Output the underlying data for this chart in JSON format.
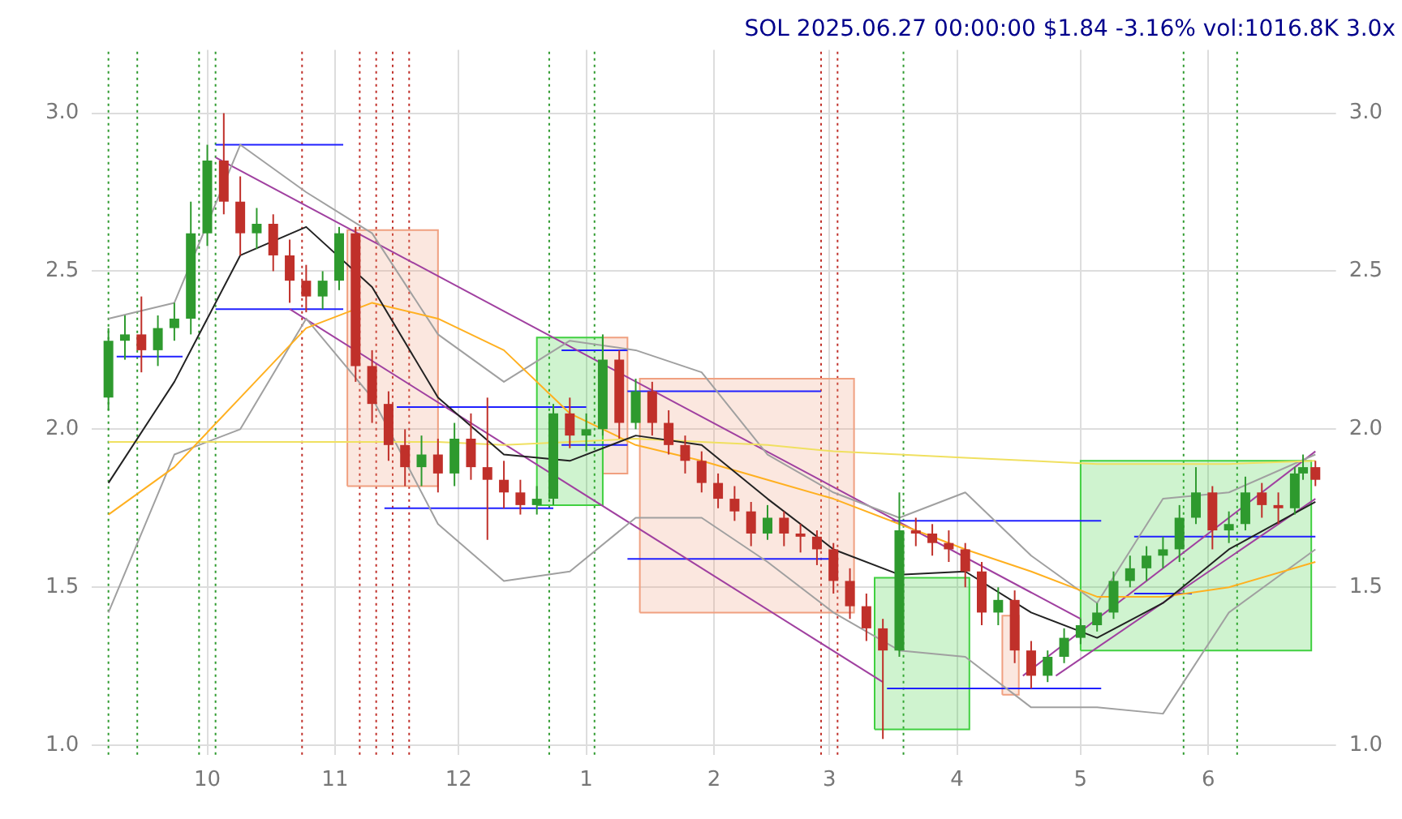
{
  "chart_data": {
    "type": "candlestick",
    "title": "SOL 2025.06.27 00:00:00 $1.84 -3.16% vol:1016.8K 3.0x",
    "x": [
      "2024-09-07",
      "2024-09-11",
      "2024-09-15",
      "2024-09-19",
      "2024-09-23",
      "2024-09-27",
      "2024-10-01",
      "2024-10-05",
      "2024-10-09",
      "2024-10-13",
      "2024-10-17",
      "2024-10-21",
      "2024-10-25",
      "2024-10-29",
      "2024-11-02",
      "2024-11-06",
      "2024-11-10",
      "2024-11-14",
      "2024-11-18",
      "2024-11-22",
      "2024-11-26",
      "2024-11-30",
      "2024-12-04",
      "2024-12-08",
      "2024-12-12",
      "2024-12-16",
      "2024-12-20",
      "2024-12-24",
      "2024-12-28",
      "2025-01-01",
      "2025-01-05",
      "2025-01-09",
      "2025-01-13",
      "2025-01-17",
      "2025-01-21",
      "2025-01-25",
      "2025-01-29",
      "2025-02-02",
      "2025-02-06",
      "2025-02-10",
      "2025-02-14",
      "2025-02-18",
      "2025-02-22",
      "2025-02-26",
      "2025-03-02",
      "2025-03-06",
      "2025-03-10",
      "2025-03-14",
      "2025-03-18",
      "2025-03-22",
      "2025-03-26",
      "2025-03-30",
      "2025-04-03",
      "2025-04-07",
      "2025-04-11",
      "2025-04-15",
      "2025-04-19",
      "2025-04-23",
      "2025-04-27",
      "2025-05-01",
      "2025-05-05",
      "2025-05-09",
      "2025-05-13",
      "2025-05-17",
      "2025-05-21",
      "2025-05-25",
      "2025-05-29",
      "2025-06-02",
      "2025-06-06",
      "2025-06-10",
      "2025-06-14",
      "2025-06-18",
      "2025-06-22",
      "2025-06-24",
      "2025-06-27"
    ],
    "ohlc": [
      [
        2.1,
        2.32,
        2.06,
        2.28
      ],
      [
        2.28,
        2.36,
        2.22,
        2.3
      ],
      [
        2.3,
        2.42,
        2.18,
        2.25
      ],
      [
        2.25,
        2.36,
        2.2,
        2.32
      ],
      [
        2.32,
        2.4,
        2.28,
        2.35
      ],
      [
        2.35,
        2.72,
        2.3,
        2.62
      ],
      [
        2.62,
        2.9,
        2.58,
        2.85
      ],
      [
        2.85,
        3.0,
        2.68,
        2.72
      ],
      [
        2.72,
        2.8,
        2.55,
        2.62
      ],
      [
        2.62,
        2.7,
        2.57,
        2.65
      ],
      [
        2.65,
        2.68,
        2.5,
        2.55
      ],
      [
        2.55,
        2.6,
        2.4,
        2.47
      ],
      [
        2.47,
        2.52,
        2.37,
        2.42
      ],
      [
        2.42,
        2.5,
        2.38,
        2.47
      ],
      [
        2.47,
        2.64,
        2.44,
        2.62
      ],
      [
        2.62,
        2.64,
        2.15,
        2.2
      ],
      [
        2.2,
        2.25,
        2.02,
        2.08
      ],
      [
        2.08,
        2.12,
        1.9,
        1.95
      ],
      [
        1.95,
        2.0,
        1.82,
        1.88
      ],
      [
        1.88,
        1.98,
        1.82,
        1.92
      ],
      [
        1.92,
        1.97,
        1.8,
        1.86
      ],
      [
        1.86,
        2.02,
        1.82,
        1.97
      ],
      [
        1.97,
        2.05,
        1.84,
        1.88
      ],
      [
        1.88,
        2.1,
        1.65,
        1.84
      ],
      [
        1.84,
        1.9,
        1.75,
        1.8
      ],
      [
        1.8,
        1.84,
        1.73,
        1.76
      ],
      [
        1.76,
        1.82,
        1.73,
        1.78
      ],
      [
        1.78,
        2.08,
        1.76,
        2.05
      ],
      [
        2.05,
        2.1,
        1.94,
        1.98
      ],
      [
        1.98,
        2.05,
        1.93,
        2.0
      ],
      [
        2.0,
        2.3,
        1.98,
        2.22
      ],
      [
        2.22,
        2.25,
        1.97,
        2.02
      ],
      [
        2.02,
        2.16,
        2.0,
        2.12
      ],
      [
        2.12,
        2.15,
        1.98,
        2.02
      ],
      [
        2.02,
        2.06,
        1.92,
        1.95
      ],
      [
        1.95,
        1.98,
        1.86,
        1.9
      ],
      [
        1.9,
        1.93,
        1.8,
        1.83
      ],
      [
        1.83,
        1.86,
        1.75,
        1.78
      ],
      [
        1.78,
        1.82,
        1.71,
        1.74
      ],
      [
        1.74,
        1.77,
        1.63,
        1.67
      ],
      [
        1.67,
        1.76,
        1.65,
        1.72
      ],
      [
        1.72,
        1.74,
        1.63,
        1.67
      ],
      [
        1.67,
        1.7,
        1.61,
        1.66
      ],
      [
        1.66,
        1.68,
        1.57,
        1.62
      ],
      [
        1.62,
        1.64,
        1.48,
        1.52
      ],
      [
        1.52,
        1.56,
        1.4,
        1.44
      ],
      [
        1.44,
        1.48,
        1.33,
        1.37
      ],
      [
        1.37,
        1.4,
        1.02,
        1.3
      ],
      [
        1.3,
        1.8,
        1.28,
        1.68
      ],
      [
        1.68,
        1.72,
        1.63,
        1.67
      ],
      [
        1.67,
        1.7,
        1.6,
        1.64
      ],
      [
        1.64,
        1.68,
        1.58,
        1.62
      ],
      [
        1.62,
        1.64,
        1.5,
        1.55
      ],
      [
        1.55,
        1.58,
        1.38,
        1.42
      ],
      [
        1.42,
        1.5,
        1.38,
        1.46
      ],
      [
        1.46,
        1.49,
        1.26,
        1.3
      ],
      [
        1.3,
        1.33,
        1.18,
        1.22
      ],
      [
        1.22,
        1.3,
        1.2,
        1.28
      ],
      [
        1.28,
        1.37,
        1.26,
        1.34
      ],
      [
        1.34,
        1.4,
        1.32,
        1.38
      ],
      [
        1.38,
        1.45,
        1.36,
        1.42
      ],
      [
        1.42,
        1.55,
        1.4,
        1.52
      ],
      [
        1.52,
        1.6,
        1.5,
        1.56
      ],
      [
        1.56,
        1.63,
        1.52,
        1.6
      ],
      [
        1.6,
        1.66,
        1.56,
        1.62
      ],
      [
        1.62,
        1.76,
        1.58,
        1.72
      ],
      [
        1.72,
        1.88,
        1.7,
        1.8
      ],
      [
        1.8,
        1.82,
        1.62,
        1.68
      ],
      [
        1.68,
        1.74,
        1.64,
        1.7
      ],
      [
        1.7,
        1.85,
        1.68,
        1.8
      ],
      [
        1.8,
        1.83,
        1.72,
        1.76
      ],
      [
        1.76,
        1.8,
        1.7,
        1.75
      ],
      [
        1.75,
        1.88,
        1.73,
        1.86
      ],
      [
        1.86,
        1.92,
        1.84,
        1.88
      ],
      [
        1.88,
        1.9,
        1.82,
        1.84
      ]
    ],
    "colors": [
      "#2e9a2e",
      "#2e9a2e",
      "#c0302a",
      "#2e9a2e",
      "#2e9a2e",
      "#2e9a2e",
      "#2e9a2e",
      "#c0302a",
      "#c0302a",
      "#2e9a2e",
      "#c0302a",
      "#c0302a",
      "#c0302a",
      "#2e9a2e",
      "#2e9a2e",
      "#c0302a",
      "#c0302a",
      "#c0302a",
      "#c0302a",
      "#2e9a2e",
      "#c0302a",
      "#2e9a2e",
      "#c0302a",
      "#c0302a",
      "#c0302a",
      "#c0302a",
      "#2e9a2e",
      "#2e9a2e",
      "#c0302a",
      "#2e9a2e",
      "#2e9a2e",
      "#c0302a",
      "#2e9a2e",
      "#c0302a",
      "#c0302a",
      "#c0302a",
      "#c0302a",
      "#c0302a",
      "#c0302a",
      "#c0302a",
      "#2e9a2e",
      "#c0302a",
      "#c0302a",
      "#c0302a",
      "#c0302a",
      "#c0302a",
      "#c0302a",
      "#c0302a",
      "#2e9a2e",
      "#c0302a",
      "#c0302a",
      "#c0302a",
      "#c0302a",
      "#c0302a",
      "#2e9a2e",
      "#c0302a",
      "#c0302a",
      "#2e9a2e",
      "#2e9a2e",
      "#2e9a2e",
      "#2e9a2e",
      "#2e9a2e",
      "#2e9a2e",
      "#2e9a2e",
      "#2e9a2e",
      "#2e9a2e",
      "#2e9a2e",
      "#c0302a",
      "#2e9a2e",
      "#2e9a2e",
      "#c0302a",
      "#c0302a",
      "#2e9a2e",
      "#2e9a2e",
      "#c0302a"
    ],
    "series": [
      {
        "type": "area",
        "color": "#f0a080",
        "x": [
          "2024-11-04",
          "2024-11-04",
          "2024-11-26",
          "2024-11-26",
          "2024-11-04"
        ],
        "values": [
          1.82,
          2.63,
          2.63,
          1.82,
          1.82
        ]
      },
      {
        "type": "area",
        "color": "#40d040",
        "x": [
          "2024-12-20",
          "2024-12-20",
          "2025-01-05",
          "2025-01-05",
          "2024-12-20"
        ],
        "values": [
          1.76,
          2.29,
          2.29,
          1.76,
          1.76
        ]
      },
      {
        "type": "area",
        "color": "#f0a080",
        "x": [
          "2025-01-05",
          "2025-01-05",
          "2025-01-11",
          "2025-01-11",
          "2025-01-05"
        ],
        "values": [
          1.86,
          2.29,
          2.29,
          1.86,
          1.86
        ]
      },
      {
        "type": "area",
        "color": "#f0a080",
        "x": [
          "2025-01-14",
          "2025-01-14",
          "2025-03-07",
          "2025-03-07",
          "2025-01-14"
        ],
        "values": [
          1.42,
          2.16,
          2.16,
          1.42,
          1.42
        ]
      },
      {
        "type": "area",
        "color": "#40d040",
        "x": [
          "2025-03-12",
          "2025-03-12",
          "2025-04-04",
          "2025-04-04",
          "2025-03-12"
        ],
        "values": [
          1.05,
          1.53,
          1.53,
          1.05,
          1.05
        ]
      },
      {
        "type": "area",
        "color": "#f0a080",
        "x": [
          "2025-04-12",
          "2025-04-12",
          "2025-04-16",
          "2025-04-16",
          "2025-04-12"
        ],
        "values": [
          1.16,
          1.41,
          1.41,
          1.16,
          1.16
        ]
      },
      {
        "type": "area",
        "color": "#40d040",
        "x": [
          "2025-05-01",
          "2025-05-01",
          "2025-06-26",
          "2025-06-26",
          "2025-05-01"
        ],
        "values": [
          1.3,
          1.9,
          1.9,
          1.3,
          1.3
        ]
      },
      {
        "type": "line",
        "color": "#222222",
        "x": [
          "2024-09-07",
          "2024-09-23",
          "2024-10-09",
          "2024-10-25",
          "2024-11-10",
          "2024-11-26",
          "2024-12-12",
          "2024-12-28",
          "2025-01-13",
          "2025-01-29",
          "2025-02-14",
          "2025-03-02",
          "2025-03-18",
          "2025-04-03",
          "2025-04-19",
          "2025-05-05",
          "2025-05-21",
          "2025-06-06",
          "2025-06-27"
        ],
        "values": [
          1.83,
          2.15,
          2.55,
          2.64,
          2.45,
          2.1,
          1.92,
          1.9,
          1.98,
          1.95,
          1.78,
          1.62,
          1.54,
          1.55,
          1.42,
          1.34,
          1.45,
          1.62,
          1.77
        ]
      },
      {
        "type": "line",
        "color": "#ffb020",
        "x": [
          "2024-09-07",
          "2024-09-23",
          "2024-10-09",
          "2024-10-25",
          "2024-11-10",
          "2024-11-26",
          "2024-12-12",
          "2024-12-28",
          "2025-01-13",
          "2025-01-29",
          "2025-02-14",
          "2025-03-02",
          "2025-03-18",
          "2025-04-03",
          "2025-04-19",
          "2025-05-05",
          "2025-05-21",
          "2025-06-06",
          "2025-06-27"
        ],
        "values": [
          1.73,
          1.88,
          2.1,
          2.32,
          2.4,
          2.35,
          2.25,
          2.05,
          1.95,
          1.9,
          1.84,
          1.78,
          1.7,
          1.62,
          1.55,
          1.47,
          1.47,
          1.5,
          1.58
        ]
      },
      {
        "type": "line",
        "color": "#f0e060",
        "x": [
          "2024-09-07",
          "2024-09-23",
          "2024-10-09",
          "2024-10-25",
          "2024-11-10",
          "2024-11-26",
          "2024-12-12",
          "2024-12-28",
          "2025-01-13",
          "2025-01-29",
          "2025-02-14",
          "2025-03-02",
          "2025-03-18",
          "2025-04-03",
          "2025-04-19",
          "2025-05-05",
          "2025-05-21",
          "2025-06-06",
          "2025-06-27"
        ],
        "values": [
          1.96,
          1.96,
          1.96,
          1.96,
          1.96,
          1.96,
          1.95,
          1.96,
          1.97,
          1.96,
          1.95,
          1.93,
          1.92,
          1.91,
          1.9,
          1.89,
          1.89,
          1.89,
          1.9
        ]
      },
      {
        "type": "line",
        "color": "#a0a0a0",
        "x": [
          "2024-09-07",
          "2024-09-23",
          "2024-10-09",
          "2024-10-25",
          "2024-11-10",
          "2024-11-26",
          "2024-12-12",
          "2024-12-28",
          "2025-01-13",
          "2025-01-29",
          "2025-02-14",
          "2025-03-02",
          "2025-03-18",
          "2025-04-03",
          "2025-04-19",
          "2025-05-05",
          "2025-05-21",
          "2025-06-06",
          "2025-06-27"
        ],
        "values": [
          2.35,
          2.4,
          2.9,
          2.75,
          2.62,
          2.3,
          2.15,
          2.28,
          2.25,
          2.18,
          1.92,
          1.8,
          1.72,
          1.8,
          1.6,
          1.45,
          1.78,
          1.8,
          1.92
        ]
      },
      {
        "type": "line",
        "color": "#a0a0a0",
        "x": [
          "2024-09-07",
          "2024-09-23",
          "2024-10-09",
          "2024-10-25",
          "2024-11-10",
          "2024-11-26",
          "2024-12-12",
          "2024-12-28",
          "2025-01-13",
          "2025-01-29",
          "2025-02-14",
          "2025-03-02",
          "2025-03-18",
          "2025-04-03",
          "2025-04-19",
          "2025-05-05",
          "2025-05-21",
          "2025-06-06",
          "2025-06-27"
        ],
        "values": [
          1.42,
          1.92,
          2.0,
          2.35,
          2.1,
          1.7,
          1.52,
          1.55,
          1.72,
          1.72,
          1.58,
          1.42,
          1.3,
          1.28,
          1.12,
          1.12,
          1.1,
          1.42,
          1.62
        ]
      },
      {
        "type": "line",
        "color": "#a040a0",
        "x": [
          "2024-10-03",
          "2025-05-01"
        ],
        "values": [
          2.86,
          1.4
        ]
      },
      {
        "type": "line",
        "color": "#a040a0",
        "x": [
          "2024-10-21",
          "2025-03-14"
        ],
        "values": [
          2.38,
          1.2
        ]
      },
      {
        "type": "line",
        "color": "#a040a0",
        "x": [
          "2025-04-17",
          "2025-06-27"
        ],
        "values": [
          1.22,
          1.93
        ]
      },
      {
        "type": "line",
        "color": "#a040a0",
        "x": [
          "2025-04-25",
          "2025-06-27"
        ],
        "values": [
          1.22,
          1.78
        ]
      },
      {
        "type": "line",
        "color": "#2020ff",
        "x": [
          "2024-10-03",
          "2024-11-03"
        ],
        "values": [
          2.9,
          2.9
        ]
      },
      {
        "type": "line",
        "color": "#2020ff",
        "x": [
          "2024-09-09",
          "2024-09-25"
        ],
        "values": [
          2.23,
          2.23
        ]
      },
      {
        "type": "line",
        "color": "#2020ff",
        "x": [
          "2024-10-03",
          "2024-11-03"
        ],
        "values": [
          2.38,
          2.38
        ]
      },
      {
        "type": "line",
        "color": "#2020ff",
        "x": [
          "2024-11-16",
          "2025-01-01"
        ],
        "values": [
          2.07,
          2.07
        ]
      },
      {
        "type": "line",
        "color": "#2020ff",
        "x": [
          "2024-12-26",
          "2025-01-11"
        ],
        "values": [
          2.25,
          2.25
        ]
      },
      {
        "type": "line",
        "color": "#2020ff",
        "x": [
          "2025-01-11",
          "2025-02-27"
        ],
        "values": [
          2.12,
          2.12
        ]
      },
      {
        "type": "line",
        "color": "#2020ff",
        "x": [
          "2024-11-13",
          "2024-12-24"
        ],
        "values": [
          1.75,
          1.75
        ]
      },
      {
        "type": "line",
        "color": "#2020ff",
        "x": [
          "2024-12-26",
          "2025-01-11"
        ],
        "values": [
          1.95,
          1.95
        ]
      },
      {
        "type": "line",
        "color": "#2020ff",
        "x": [
          "2025-01-11",
          "2025-03-01"
        ],
        "values": [
          1.59,
          1.59
        ]
      },
      {
        "type": "line",
        "color": "#2020ff",
        "x": [
          "2025-03-16",
          "2025-05-06"
        ],
        "values": [
          1.71,
          1.71
        ]
      },
      {
        "type": "line",
        "color": "#2020ff",
        "x": [
          "2025-03-15",
          "2025-05-06"
        ],
        "values": [
          1.18,
          1.18
        ]
      },
      {
        "type": "line",
        "color": "#2020ff",
        "x": [
          "2025-05-14",
          "2025-06-27"
        ],
        "values": [
          1.66,
          1.66
        ]
      },
      {
        "type": "line",
        "color": "#2020ff",
        "x": [
          "2025-05-14",
          "2025-05-28"
        ],
        "values": [
          1.48,
          1.48
        ]
      }
    ],
    "ref_lines": [
      {
        "axis": "x",
        "value": "2024-09-07",
        "color": "#2e9a2e",
        "line_style": "dotted"
      },
      {
        "axis": "x",
        "value": "2024-09-14",
        "color": "#2e9a2e",
        "line_style": "dotted"
      },
      {
        "axis": "x",
        "value": "2024-09-29",
        "color": "#2e9a2e",
        "line_style": "dotted"
      },
      {
        "axis": "x",
        "value": "2024-10-03",
        "color": "#2e9a2e",
        "line_style": "dotted"
      },
      {
        "axis": "x",
        "value": "2024-10-24",
        "color": "#c0302a",
        "line_style": "dotted"
      },
      {
        "axis": "x",
        "value": "2024-11-07",
        "color": "#c0302a",
        "line_style": "dotted"
      },
      {
        "axis": "x",
        "value": "2024-11-11",
        "color": "#c0302a",
        "line_style": "dotted"
      },
      {
        "axis": "x",
        "value": "2024-11-15",
        "color": "#c0302a",
        "line_style": "dotted"
      },
      {
        "axis": "x",
        "value": "2024-11-19",
        "color": "#c0302a",
        "line_style": "dotted"
      },
      {
        "axis": "x",
        "value": "2024-12-23",
        "color": "#2e9a2e",
        "line_style": "dotted"
      },
      {
        "axis": "x",
        "value": "2025-01-03",
        "color": "#2e9a2e",
        "line_style": "dotted"
      },
      {
        "axis": "x",
        "value": "2025-02-27",
        "color": "#c0302a",
        "line_style": "dotted"
      },
      {
        "axis": "x",
        "value": "2025-03-03",
        "color": "#c0302a",
        "line_style": "dotted"
      },
      {
        "axis": "x",
        "value": "2025-03-19",
        "color": "#2e9a2e",
        "line_style": "dotted"
      },
      {
        "axis": "x",
        "value": "2025-05-26",
        "color": "#2e9a2e",
        "line_style": "dotted"
      },
      {
        "axis": "x",
        "value": "2025-06-08",
        "color": "#2e9a2e",
        "line_style": "dotted"
      }
    ],
    "xlim": [
      "2024-09-03",
      "2025-07-02"
    ],
    "xticks": [
      {
        "value": "2024-10-01",
        "label": "10"
      },
      {
        "value": "2024-11-01",
        "label": "11"
      },
      {
        "value": "2024-12-01",
        "label": "12"
      },
      {
        "value": "2025-01-01",
        "label": "1"
      },
      {
        "value": "2025-02-01",
        "label": "2"
      },
      {
        "value": "2025-03-01",
        "label": "3"
      },
      {
        "value": "2025-04-01",
        "label": "4"
      },
      {
        "value": "2025-05-01",
        "label": "5"
      },
      {
        "value": "2025-06-01",
        "label": "6"
      }
    ],
    "ylim": [
      0.97,
      3.2
    ],
    "yticks": [
      {
        "value": 1,
        "label": "1.0"
      },
      {
        "value": 1.5,
        "label": "1.5"
      },
      {
        "value": 2,
        "label": "2.0"
      },
      {
        "value": 2.5,
        "label": "2.5"
      },
      {
        "value": 3,
        "label": "3.0"
      }
    ],
    "y2lim": [
      0.97,
      3.2
    ],
    "y2ticks": [
      {
        "value": 1,
        "label": "1.0"
      },
      {
        "value": 1.5,
        "label": "1.5"
      },
      {
        "value": 2,
        "label": "2.0"
      },
      {
        "value": 2.5,
        "label": "2.5"
      },
      {
        "value": 3,
        "label": "3.0"
      }
    ],
    "grid": true,
    "legend": false
  }
}
